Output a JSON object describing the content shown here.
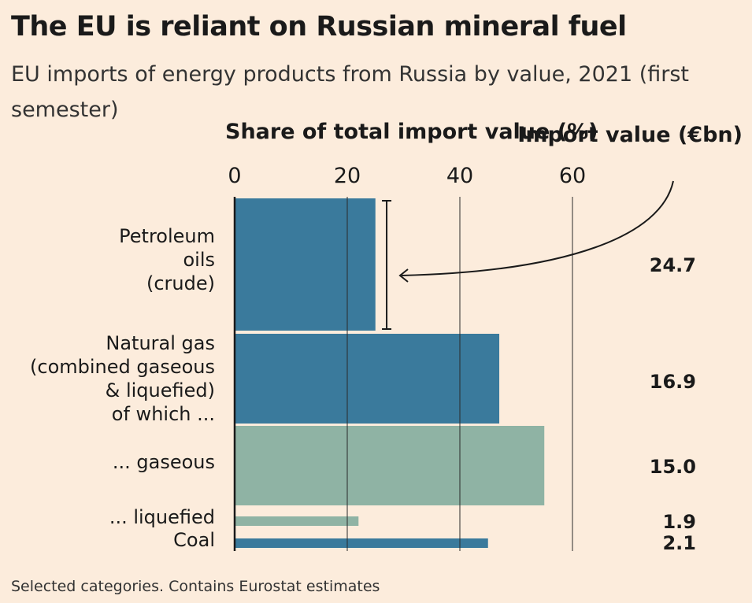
{
  "title": "The EU is reliant on Russian mineral fuel",
  "subtitle": "EU imports of energy products from Russia by value, 2021 (first semester)",
  "footnote": "Selected categories. Contains Eurostat estimates",
  "colors": {
    "background": "#fcecdc",
    "dark_blue": "#3a7a9c",
    "light_green": "#8fb3a4",
    "grid": "#2a2a2a"
  },
  "chart_data": {
    "type": "bar",
    "orientation": "horizontal",
    "xlabel": "Share of total import value (%)",
    "value_column_label": "Import value (€bn)",
    "xlim": [
      0,
      75
    ],
    "xticks": [
      0,
      20,
      40,
      60
    ],
    "grid": true,
    "categories": [
      {
        "label_lines": [
          "Petroleum",
          "oils",
          "(crude)"
        ],
        "share": 25,
        "error_range": [
          26.5,
          27.5
        ],
        "import_value": "24.7",
        "color": "dark_blue"
      },
      {
        "label_lines": [
          "Natural gas",
          "(combined gaseous",
          "& liquefied)",
          "of which ..."
        ],
        "share": 47,
        "import_value": "16.9",
        "color": "dark_blue"
      },
      {
        "label_lines": [
          "... gaseous"
        ],
        "share": 55,
        "import_value": "15.0",
        "color": "light_green"
      },
      {
        "label_lines": [
          "... liquefied"
        ],
        "share": 22,
        "import_value": "1.9",
        "color": "light_green"
      },
      {
        "label_lines": [
          "Coal"
        ],
        "share": 45,
        "import_value": "2.1",
        "color": "dark_blue"
      }
    ]
  }
}
